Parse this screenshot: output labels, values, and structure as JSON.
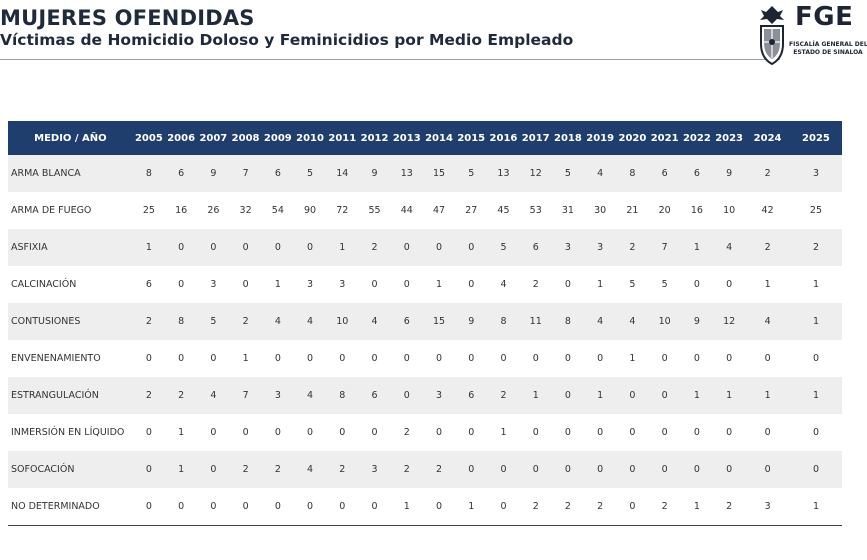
{
  "header": {
    "title": "MUJERES OFENDIDAS",
    "subtitle": "Víctimas de Homicidio Doloso y Feminicidios por Medio Empleado",
    "logo": {
      "acronym": "FGE",
      "line1": "FISCALÍA GENERAL DEL",
      "line2": "ESTADO DE SINALOA",
      "seal_icon": "state-seal-icon",
      "color": "#1d2533"
    }
  },
  "table": {
    "header_color": "#1f3e6e",
    "corner_label": "MEDIO  /  AÑO",
    "years": [
      "2005",
      "2006",
      "2007",
      "2008",
      "2009",
      "2010",
      "2011",
      "2012",
      "2013",
      "2014",
      "2015",
      "2016",
      "2017",
      "2018",
      "2019",
      "2020",
      "2021",
      "2022",
      "2023",
      "2024",
      "2025"
    ],
    "rows": [
      {
        "label": "ARMA BLANCA",
        "values": [
          "8",
          "6",
          "9",
          "7",
          "6",
          "5",
          "14",
          "9",
          "13",
          "15",
          "5",
          "13",
          "12",
          "5",
          "4",
          "8",
          "6",
          "6",
          "9",
          "2",
          "3"
        ]
      },
      {
        "label": "ARMA DE FUEGO",
        "values": [
          "25",
          "16",
          "26",
          "32",
          "54",
          "90",
          "72",
          "55",
          "44",
          "47",
          "27",
          "45",
          "53",
          "31",
          "30",
          "21",
          "20",
          "16",
          "10",
          "42",
          "25"
        ]
      },
      {
        "label": "ASFIXIA",
        "values": [
          "1",
          "0",
          "0",
          "0",
          "0",
          "0",
          "1",
          "2",
          "0",
          "0",
          "0",
          "5",
          "6",
          "3",
          "3",
          "2",
          "7",
          "1",
          "4",
          "2",
          "2"
        ]
      },
      {
        "label": "CALCINACIÓN",
        "values": [
          "6",
          "0",
          "3",
          "0",
          "1",
          "3",
          "3",
          "0",
          "0",
          "1",
          "0",
          "4",
          "2",
          "0",
          "1",
          "5",
          "5",
          "0",
          "0",
          "1",
          "1"
        ]
      },
      {
        "label": "CONTUSIONES",
        "values": [
          "2",
          "8",
          "5",
          "2",
          "4",
          "4",
          "10",
          "4",
          "6",
          "15",
          "9",
          "8",
          "11",
          "8",
          "4",
          "4",
          "10",
          "9",
          "12",
          "4",
          "1"
        ]
      },
      {
        "label": "ENVENENAMIENTO",
        "values": [
          "0",
          "0",
          "0",
          "1",
          "0",
          "0",
          "0",
          "0",
          "0",
          "0",
          "0",
          "0",
          "0",
          "0",
          "0",
          "1",
          "0",
          "0",
          "0",
          "0",
          "0"
        ]
      },
      {
        "label": "ESTRANGULACIÓN",
        "values": [
          "2",
          "2",
          "4",
          "7",
          "3",
          "4",
          "8",
          "6",
          "0",
          "3",
          "6",
          "2",
          "1",
          "0",
          "1",
          "0",
          "0",
          "1",
          "1",
          "1",
          "1"
        ]
      },
      {
        "label": "INMERSIÓN EN LÍQUIDO",
        "values": [
          "0",
          "1",
          "0",
          "0",
          "0",
          "0",
          "0",
          "0",
          "2",
          "0",
          "0",
          "1",
          "0",
          "0",
          "0",
          "0",
          "0",
          "0",
          "0",
          "0",
          "0"
        ]
      },
      {
        "label": "SOFOCACIÓN",
        "values": [
          "0",
          "1",
          "0",
          "2",
          "2",
          "4",
          "2",
          "3",
          "2",
          "2",
          "0",
          "0",
          "0",
          "0",
          "0",
          "0",
          "0",
          "0",
          "0",
          "0",
          "0"
        ]
      },
      {
        "label": "NO DETERMINADO",
        "values": [
          "0",
          "0",
          "0",
          "0",
          "0",
          "0",
          "0",
          "0",
          "1",
          "0",
          "1",
          "0",
          "2",
          "2",
          "2",
          "0",
          "2",
          "1",
          "2",
          "3",
          "1"
        ]
      }
    ]
  }
}
